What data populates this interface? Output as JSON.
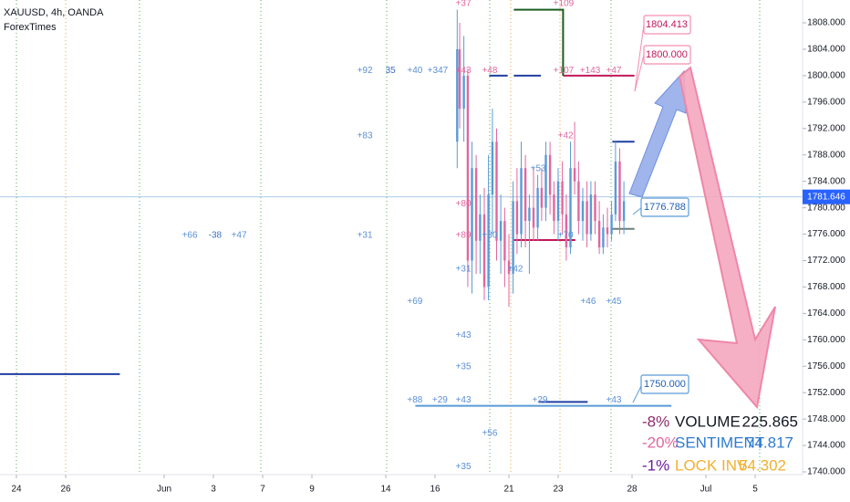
{
  "header": {
    "title": "XAUUSD, 4h, OANDA",
    "source": "ForexTimes"
  },
  "chart_data": {
    "type": "candlestick",
    "xlim": [
      -0.667,
      31.926
    ],
    "ylim": [
      1735.44,
      1811.46
    ],
    "xticks": [
      {
        "value": 0,
        "label": "24"
      },
      {
        "value": 2,
        "label": "26"
      },
      {
        "value": 6,
        "label": "Jun"
      },
      {
        "value": 8,
        "label": "3"
      },
      {
        "value": 10,
        "label": "7"
      },
      {
        "value": 12,
        "label": "9"
      },
      {
        "value": 15,
        "label": "14"
      },
      {
        "value": 17,
        "label": "16"
      },
      {
        "value": 20,
        "label": "21"
      },
      {
        "value": 22,
        "label": "23"
      },
      {
        "value": 25,
        "label": "28"
      },
      {
        "value": 28,
        "label": "Jul"
      },
      {
        "value": 30,
        "label": "5"
      }
    ],
    "yticks": [
      {
        "value": 1740,
        "label": "1740.000"
      },
      {
        "value": 1744,
        "label": "1744.000"
      },
      {
        "value": 1748,
        "label": "1748.000"
      },
      {
        "value": 1752,
        "label": "1752.000"
      },
      {
        "value": 1756,
        "label": "1756.000"
      },
      {
        "value": 1760,
        "label": "1760.000"
      },
      {
        "value": 1764,
        "label": "1764.000"
      },
      {
        "value": 1768,
        "label": "1768.000"
      },
      {
        "value": 1772,
        "label": "1772.000"
      },
      {
        "value": 1776,
        "label": "1776.000"
      },
      {
        "value": 1780,
        "label": "1780.000"
      },
      {
        "value": 1784,
        "label": "1784.000"
      },
      {
        "value": 1788,
        "label": "1788.000"
      },
      {
        "value": 1792,
        "label": "1792.000"
      },
      {
        "value": 1796,
        "label": "1796.000"
      },
      {
        "value": 1800,
        "label": "1800.000"
      },
      {
        "value": 1804,
        "label": "1804.000"
      },
      {
        "value": 1808,
        "label": "1808.000"
      }
    ],
    "x": [
      17.9,
      18,
      18.17,
      18.33,
      18.5,
      18.67,
      18.83,
      19,
      19.17,
      19.33,
      19.5,
      19.67,
      19.83,
      20,
      20.17,
      20.33,
      20.5,
      20.67,
      20.83,
      21,
      21.17,
      21.33,
      21.5,
      21.67,
      21.83,
      22,
      22.17,
      22.33,
      22.5,
      22.67,
      22.83,
      23,
      23.17,
      23.33,
      23.5,
      23.67,
      23.83,
      24,
      24.17,
      24.33,
      24.5,
      24.67
    ],
    "open": [
      1790,
      1804,
      1795,
      1800,
      1772,
      1786,
      1775,
      1779,
      1768,
      1782,
      1790,
      1775,
      1778,
      1772,
      1770,
      1781,
      1776,
      1786,
      1778,
      1780,
      1777,
      1783,
      1780,
      1788,
      1782,
      1778,
      1784,
      1779,
      1774,
      1786,
      1784,
      1778,
      1781,
      1776,
      1782,
      1778,
      1774,
      1777,
      1776,
      1779,
      1787,
      1778
    ],
    "high": [
      1810,
      1808,
      1806,
      1801,
      1790,
      1788,
      1782,
      1783,
      1788,
      1795,
      1792,
      1782,
      1780,
      1776,
      1784,
      1786,
      1790,
      1788,
      1782,
      1786,
      1785,
      1786,
      1790,
      1790,
      1784,
      1786,
      1787,
      1782,
      1790,
      1793,
      1787,
      1783,
      1784,
      1784,
      1784,
      1781,
      1779,
      1780,
      1781,
      1790,
      1789,
      1784
    ],
    "low": [
      1786,
      1792,
      1790,
      1768,
      1767,
      1770,
      1770,
      1766,
      1766,
      1776,
      1772,
      1770,
      1768,
      1765,
      1767,
      1773,
      1774,
      1774,
      1770,
      1775,
      1775,
      1778,
      1778,
      1779,
      1776,
      1775,
      1776,
      1772,
      1773,
      1782,
      1776,
      1775,
      1774,
      1775,
      1776,
      1773,
      1773,
      1774,
      1775,
      1778,
      1776,
      1776
    ],
    "close": [
      1804,
      1795,
      1800,
      1772,
      1786,
      1775,
      1779,
      1768,
      1782,
      1790,
      1775,
      1778,
      1772,
      1770,
      1781,
      1776,
      1786,
      1778,
      1780,
      1777,
      1783,
      1780,
      1788,
      1782,
      1778,
      1784,
      1779,
      1774,
      1786,
      1784,
      1778,
      1781,
      1776,
      1782,
      1778,
      1774,
      1777,
      1776,
      1779,
      1787,
      1778,
      1781
    ],
    "up_color": "#5b9bd5",
    "down_color": "#e0679f",
    "levels": [
      {
        "x": [
          -0.667,
          4.2
        ],
        "value": 1754.8,
        "color": "#1f3fa0"
      },
      {
        "x": [
          19.2,
          19.95
        ],
        "value": 1800,
        "color": "#1f3fa0"
      },
      {
        "x": [
          20.2,
          21.3
        ],
        "value": 1800,
        "color": "#1f3fa0"
      },
      {
        "x": [
          22.2,
          25.1
        ],
        "value": 1800,
        "color": "#c2185b"
      },
      {
        "x": [
          24.2,
          25.1
        ],
        "value": 1790,
        "color": "#1f3fa0"
      },
      {
        "x": [
          20.2,
          22.7
        ],
        "value": 1775.1,
        "color": "#c2185b"
      },
      {
        "x": [
          24.2,
          25.1
        ],
        "value": 1776.8,
        "color": "#6b7f7a"
      },
      {
        "x": [
          16.2,
          26.6
        ],
        "value": 1750,
        "color": "#5b9bd5"
      },
      {
        "x": [
          21.2,
          23.2
        ],
        "value": 1750.6,
        "color": "#1f3fa0"
      }
    ],
    "step_line": {
      "x": [
        20.2,
        22.2,
        22.2
      ],
      "values": [
        1810,
        1810,
        1800
      ],
      "color": "#1b5e20"
    },
    "annotations": [
      {
        "text": "+92",
        "x": 14.15,
        "y": 1800.8,
        "color": "#5b8fd6"
      },
      {
        "text": "35",
        "x": 15.19,
        "y": 1800.8,
        "color": "#3f6fc6"
      },
      {
        "text": "+40",
        "x": 16.18,
        "y": 1800.8,
        "color": "#5b8fd6"
      },
      {
        "text": "+347",
        "x": 17.11,
        "y": 1800.8,
        "color": "#5b8fd6"
      },
      {
        "text": "+43",
        "x": 18.15,
        "y": 1800.8,
        "color": "#e0679f"
      },
      {
        "text": "+48",
        "x": 19.22,
        "y": 1800.8,
        "color": "#e0679f"
      },
      {
        "text": "+107",
        "x": 22.22,
        "y": 1800.8,
        "color": "#e0679f"
      },
      {
        "text": "+143",
        "x": 23.3,
        "y": 1800.8,
        "color": "#e0679f"
      },
      {
        "text": "+47",
        "x": 24.26,
        "y": 1800.8,
        "color": "#e0679f"
      },
      {
        "text": "+37",
        "x": 18.15,
        "y": 1810.9,
        "color": "#e0679f"
      },
      {
        "text": "+109",
        "x": 22.22,
        "y": 1810.9,
        "color": "#e0679f"
      },
      {
        "text": "+83",
        "x": 14.15,
        "y": 1790.9,
        "color": "#5b8fd6"
      },
      {
        "text": "+42",
        "x": 22.3,
        "y": 1790.9,
        "color": "#e0679f"
      },
      {
        "text": "+53",
        "x": 21.19,
        "y": 1785.9,
        "color": "#5b8fd6"
      },
      {
        "text": "+80",
        "x": 18.15,
        "y": 1780.6,
        "color": "#e0679f"
      },
      {
        "text": "+66",
        "x": 7.04,
        "y": 1775.8,
        "color": "#5b8fd6"
      },
      {
        "text": "-38",
        "x": 8.07,
        "y": 1775.8,
        "color": "#3f6fc6"
      },
      {
        "text": "+47",
        "x": 9.04,
        "y": 1775.8,
        "color": "#5b8fd6"
      },
      {
        "text": "+31",
        "x": 14.15,
        "y": 1775.8,
        "color": "#5b8fd6"
      },
      {
        "text": "+89",
        "x": 18.15,
        "y": 1775.8,
        "color": "#e0679f"
      },
      {
        "text": "+30",
        "x": 19.22,
        "y": 1775.8,
        "color": "#5b8fd6"
      },
      {
        "text": "+70",
        "x": 22.3,
        "y": 1775.8,
        "color": "#5b8fd6"
      },
      {
        "text": "+31",
        "x": 18.15,
        "y": 1770.7,
        "color": "#5b8fd6"
      },
      {
        "text": "+42",
        "x": 20.26,
        "y": 1770.7,
        "color": "#5b8fd6"
      },
      {
        "text": "+69",
        "x": 16.18,
        "y": 1765.8,
        "color": "#5b8fd6"
      },
      {
        "text": "+46",
        "x": 23.22,
        "y": 1765.8,
        "color": "#5b8fd6"
      },
      {
        "text": "+45",
        "x": 24.26,
        "y": 1765.8,
        "color": "#5b8fd6"
      },
      {
        "text": "+43",
        "x": 18.15,
        "y": 1760.7,
        "color": "#5b8fd6"
      },
      {
        "text": "+35",
        "x": 18.15,
        "y": 1755.9,
        "color": "#5b8fd6"
      },
      {
        "text": "+88",
        "x": 16.18,
        "y": 1750.9,
        "color": "#5b8fd6"
      },
      {
        "text": "+29",
        "x": 17.2,
        "y": 1750.9,
        "color": "#5b8fd6"
      },
      {
        "text": "+43",
        "x": 18.15,
        "y": 1750.9,
        "color": "#5b8fd6"
      },
      {
        "text": "+29",
        "x": 21.26,
        "y": 1750.9,
        "color": "#5b8fd6"
      },
      {
        "text": "+43",
        "x": 24.26,
        "y": 1750.9,
        "color": "#5b8fd6"
      },
      {
        "text": "+56",
        "x": 19.22,
        "y": 1745.8,
        "color": "#5b8fd6"
      },
      {
        "text": "+35",
        "x": 18.15,
        "y": 1740.8,
        "color": "#5b8fd6"
      }
    ],
    "last_price": 1781.646,
    "price_tags": [
      {
        "value": 1804.413,
        "label": "1804.413"
      },
      {
        "value": 1800,
        "label": "1800.000"
      },
      {
        "value": 1776.788,
        "label": "1776.788"
      },
      {
        "value": 1750,
        "label": "1750.000"
      }
    ]
  },
  "stats": {
    "rows": [
      [
        "-8%",
        "VOLUME",
        "225.865"
      ],
      [
        "-20%",
        "SENTIMENT",
        "74.817"
      ],
      [
        "-1%",
        "LOCK INV",
        "54.302"
      ]
    ]
  }
}
